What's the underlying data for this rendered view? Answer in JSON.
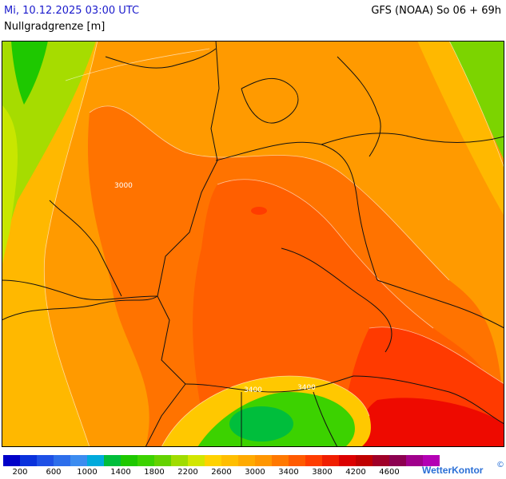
{
  "header": {
    "datetime": "Mi, 10.12.2025 03:00 UTC",
    "model_run": "GFS (NOAA) So 06 + 69h",
    "parameter": "Nullgradgrenze [m]"
  },
  "map_labels": {
    "contour_3000": "3000",
    "contour_3400_a": "3400",
    "contour_3400_b": "3400"
  },
  "legend": {
    "colors": [
      "#0000c8",
      "#0a32dc",
      "#1e50e6",
      "#2d6eeb",
      "#3c8cf0",
      "#00aadc",
      "#00be3c",
      "#1ec800",
      "#3cd200",
      "#64d200",
      "#a0dc00",
      "#d2e600",
      "#ffd200",
      "#ffbe00",
      "#ffaa00",
      "#ff9600",
      "#ff7800",
      "#ff5a00",
      "#ff3c00",
      "#f01e00",
      "#dc0000",
      "#c00000",
      "#a00028",
      "#8c0050",
      "#a0008c",
      "#b400b4"
    ],
    "tick_labels": [
      "200",
      "600",
      "1000",
      "1400",
      "1800",
      "2200",
      "2600",
      "3000",
      "3400",
      "3800",
      "4200",
      "4600"
    ]
  },
  "brand": {
    "name": "WetterKontor",
    "mark": "©"
  }
}
